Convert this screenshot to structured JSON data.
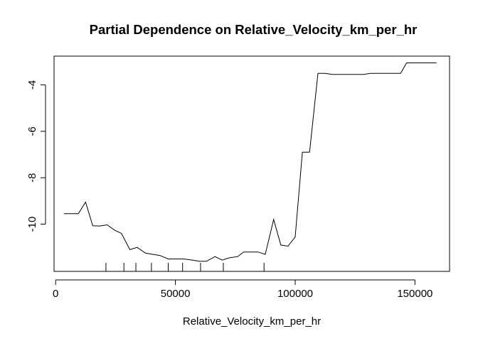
{
  "chart_data": {
    "type": "line",
    "title": "Partial Dependence on  Relative_Velocity_km_per_hr",
    "xlabel": "Relative_Velocity_km_per_hr",
    "ylabel": "",
    "xlim": [
      0,
      160000
    ],
    "ylim": [
      -11.7,
      -2.8
    ],
    "x_ticks": [
      0,
      50000,
      100000,
      150000
    ],
    "x_tick_labels": [
      "0",
      "50000",
      "100000",
      "150000"
    ],
    "y_ticks": [
      -10,
      -8,
      -6,
      -4
    ],
    "y_tick_labels": [
      "-10",
      "-8",
      "-6",
      "-4"
    ],
    "grid": false,
    "series": [
      {
        "name": "",
        "color": "#000000",
        "x": [
          3500,
          9500,
          12500,
          15500,
          18500,
          21500,
          24500,
          27500,
          31000,
          34000,
          37500,
          40500,
          43500,
          47000,
          50500,
          53500,
          57000,
          60000,
          63000,
          66500,
          69500,
          72500,
          76000,
          78500,
          81500,
          84500,
          87500,
          91000,
          94000,
          97000,
          100000,
          103000,
          106000,
          109500,
          112500,
          115500,
          119000,
          122000,
          125000,
          128500,
          131500,
          134500,
          138000,
          141000,
          144000,
          146500,
          150000,
          153000,
          156000,
          159000
        ],
        "values": [
          -9.55,
          -9.55,
          -9.05,
          -10.07,
          -10.08,
          -10.03,
          -10.25,
          -10.4,
          -11.1,
          -11.0,
          -11.25,
          -11.3,
          -11.35,
          -11.5,
          -11.5,
          -11.5,
          -11.55,
          -11.6,
          -11.6,
          -11.4,
          -11.55,
          -11.45,
          -11.4,
          -11.2,
          -11.2,
          -11.2,
          -11.3,
          -9.8,
          -10.9,
          -10.95,
          -10.55,
          -6.9,
          -6.9,
          -3.5,
          -3.5,
          -3.55,
          -3.55,
          -3.55,
          -3.55,
          -3.55,
          -3.5,
          -3.5,
          -3.5,
          -3.5,
          -3.5,
          -3.05,
          -3.05,
          -3.05,
          -3.05,
          -3.05
        ]
      }
    ],
    "rug": [
      21000,
      28500,
      33500,
      40000,
      47000,
      53000,
      60500,
      70000,
      87000
    ]
  }
}
